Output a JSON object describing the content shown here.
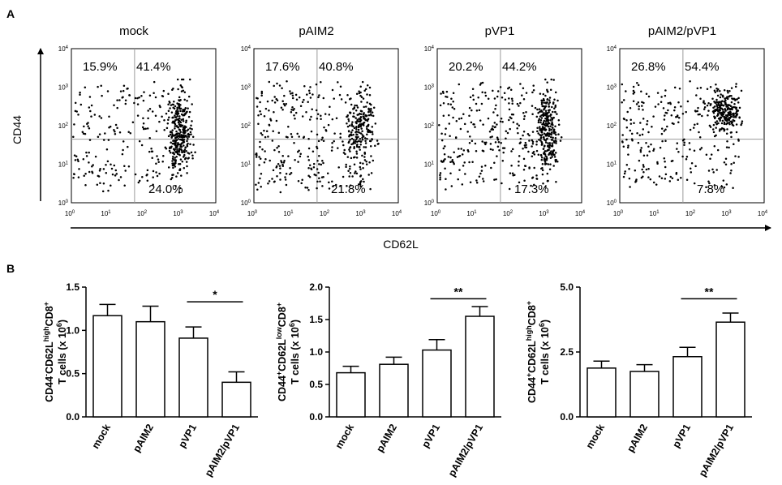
{
  "panel_a_label": "A",
  "panel_b_label": "B",
  "flow_axis": {
    "y_label": "CD44",
    "x_label": "CD62L",
    "tick_labels": [
      {
        "base": "10",
        "exp": "0"
      },
      {
        "base": "10",
        "exp": "1"
      },
      {
        "base": "10",
        "exp": "2"
      },
      {
        "base": "10",
        "exp": "3"
      },
      {
        "base": "10",
        "exp": "4"
      }
    ]
  },
  "chart_data": [
    {
      "type": "scatter",
      "title": "mock",
      "xlabel": "CD62L",
      "ylabel": "CD44",
      "xlim_log10": [
        0,
        4
      ],
      "ylim_log10": [
        0,
        4
      ],
      "quadrant_gates_log10": {
        "x": 1.75,
        "y": 1.65
      },
      "quadrant_percent": {
        "upper_left": "15.9%",
        "upper_right": "41.4%",
        "lower_right": "24.0%"
      },
      "events": 520,
      "seed": 11,
      "cluster": {
        "x": 3.0,
        "y": 1.8,
        "spread_x": 0.16,
        "spread_y": 0.5,
        "fraction": 0.52
      }
    },
    {
      "type": "scatter",
      "title": "pAIM2",
      "xlabel": "CD62L",
      "ylabel": "CD44",
      "xlim_log10": [
        0,
        4
      ],
      "ylim_log10": [
        0,
        4
      ],
      "quadrant_gates_log10": {
        "x": 1.75,
        "y": 1.65
      },
      "quadrant_percent": {
        "upper_left": "17.6%",
        "upper_right": "40.8%",
        "lower_right": "21.8%"
      },
      "events": 500,
      "seed": 23,
      "cluster": {
        "x": 2.95,
        "y": 1.9,
        "spread_x": 0.2,
        "spread_y": 0.45,
        "fraction": 0.38
      }
    },
    {
      "type": "scatter",
      "title": "pVP1",
      "xlabel": "CD62L",
      "ylabel": "CD44",
      "xlim_log10": [
        0,
        4
      ],
      "ylim_log10": [
        0,
        4
      ],
      "quadrant_gates_log10": {
        "x": 1.75,
        "y": 1.65
      },
      "quadrant_percent": {
        "upper_left": "20.2%",
        "upper_right": "44.2%",
        "lower_right": "17.3%"
      },
      "events": 560,
      "seed": 37,
      "cluster": {
        "x": 3.05,
        "y": 1.9,
        "spread_x": 0.14,
        "spread_y": 0.55,
        "fraction": 0.45
      }
    },
    {
      "type": "scatter",
      "title": "pAIM2/pVP1",
      "xlabel": "CD62L",
      "ylabel": "CD44",
      "xlim_log10": [
        0,
        4
      ],
      "ylim_log10": [
        0,
        4
      ],
      "quadrant_gates_log10": {
        "x": 1.75,
        "y": 1.65
      },
      "quadrant_percent": {
        "upper_left": "26.8%",
        "upper_right": "54.4%",
        "lower_right": "7.8%"
      },
      "events": 470,
      "seed": 53,
      "cluster": {
        "x": 2.9,
        "y": 2.4,
        "spread_x": 0.2,
        "spread_y": 0.25,
        "fraction": 0.4
      }
    },
    {
      "type": "bar",
      "ylabel_lines": [
        {
          "parts": [
            {
              "t": "CD44"
            },
            {
              "t": "-",
              "sup": true
            },
            {
              "t": "CD62L"
            },
            {
              "t": "high",
              "sup": true
            },
            {
              "t": "CD8"
            },
            {
              "t": "+",
              "sup": true
            }
          ]
        },
        {
          "parts": [
            {
              "t": "T cells (x 10"
            },
            {
              "t": "6",
              "sup": true
            },
            {
              "t": ")"
            }
          ]
        }
      ],
      "categories": [
        "mock",
        "pAIM2",
        "pVP1",
        "pAIM2/pVP1"
      ],
      "values": [
        1.17,
        1.1,
        0.91,
        0.4
      ],
      "errors": [
        0.13,
        0.18,
        0.13,
        0.12
      ],
      "ylim": [
        0.0,
        1.5
      ],
      "yticks": [
        0.0,
        0.5,
        1.0,
        1.5
      ],
      "ytick_labels": [
        "0.0",
        "0.5",
        "1.0",
        "1.5"
      ],
      "significance": {
        "from": 2,
        "to": 3,
        "label": "*",
        "y": 1.33
      }
    },
    {
      "type": "bar",
      "ylabel_lines": [
        {
          "parts": [
            {
              "t": "CD44"
            },
            {
              "t": "+",
              "sup": true
            },
            {
              "t": "CD62L"
            },
            {
              "t": "low",
              "sup": true
            },
            {
              "t": "CD8"
            },
            {
              "t": "+",
              "sup": true
            }
          ]
        },
        {
          "parts": [
            {
              "t": "T cells (x 10"
            },
            {
              "t": "6",
              "sup": true
            },
            {
              "t": ")"
            }
          ]
        }
      ],
      "categories": [
        "mock",
        "pAIM2",
        "pVP1",
        "pAIM2/pVP1"
      ],
      "values": [
        0.68,
        0.81,
        1.03,
        1.55
      ],
      "errors": [
        0.1,
        0.11,
        0.16,
        0.15
      ],
      "ylim": [
        0.0,
        2.0
      ],
      "yticks": [
        0.0,
        0.5,
        1.0,
        1.5,
        2.0
      ],
      "ytick_labels": [
        "0.0",
        "0.5",
        "1.0",
        "1.5",
        "2.0"
      ],
      "significance": {
        "from": 2,
        "to": 3,
        "label": "**",
        "y": 1.82
      }
    },
    {
      "type": "bar",
      "ylabel_lines": [
        {
          "parts": [
            {
              "t": "CD44"
            },
            {
              "t": "+",
              "sup": true
            },
            {
              "t": "CD62L"
            },
            {
              "t": "high",
              "sup": true
            },
            {
              "t": "CD8"
            },
            {
              "t": "+",
              "sup": true
            }
          ]
        },
        {
          "parts": [
            {
              "t": "T cells (x 10"
            },
            {
              "t": "6",
              "sup": true
            },
            {
              "t": ")"
            }
          ]
        }
      ],
      "categories": [
        "mock",
        "pAIM2",
        "pVP1",
        "pAIM2/pVP1"
      ],
      "values": [
        1.88,
        1.75,
        2.32,
        3.65
      ],
      "errors": [
        0.27,
        0.26,
        0.36,
        0.35
      ],
      "ylim": [
        0.0,
        5.0
      ],
      "yticks": [
        0.0,
        2.5,
        5.0
      ],
      "ytick_labels": [
        "0.0",
        "2.5",
        "5.0"
      ],
      "significance": {
        "from": 2,
        "to": 3,
        "label": "**",
        "y": 4.55
      }
    }
  ]
}
